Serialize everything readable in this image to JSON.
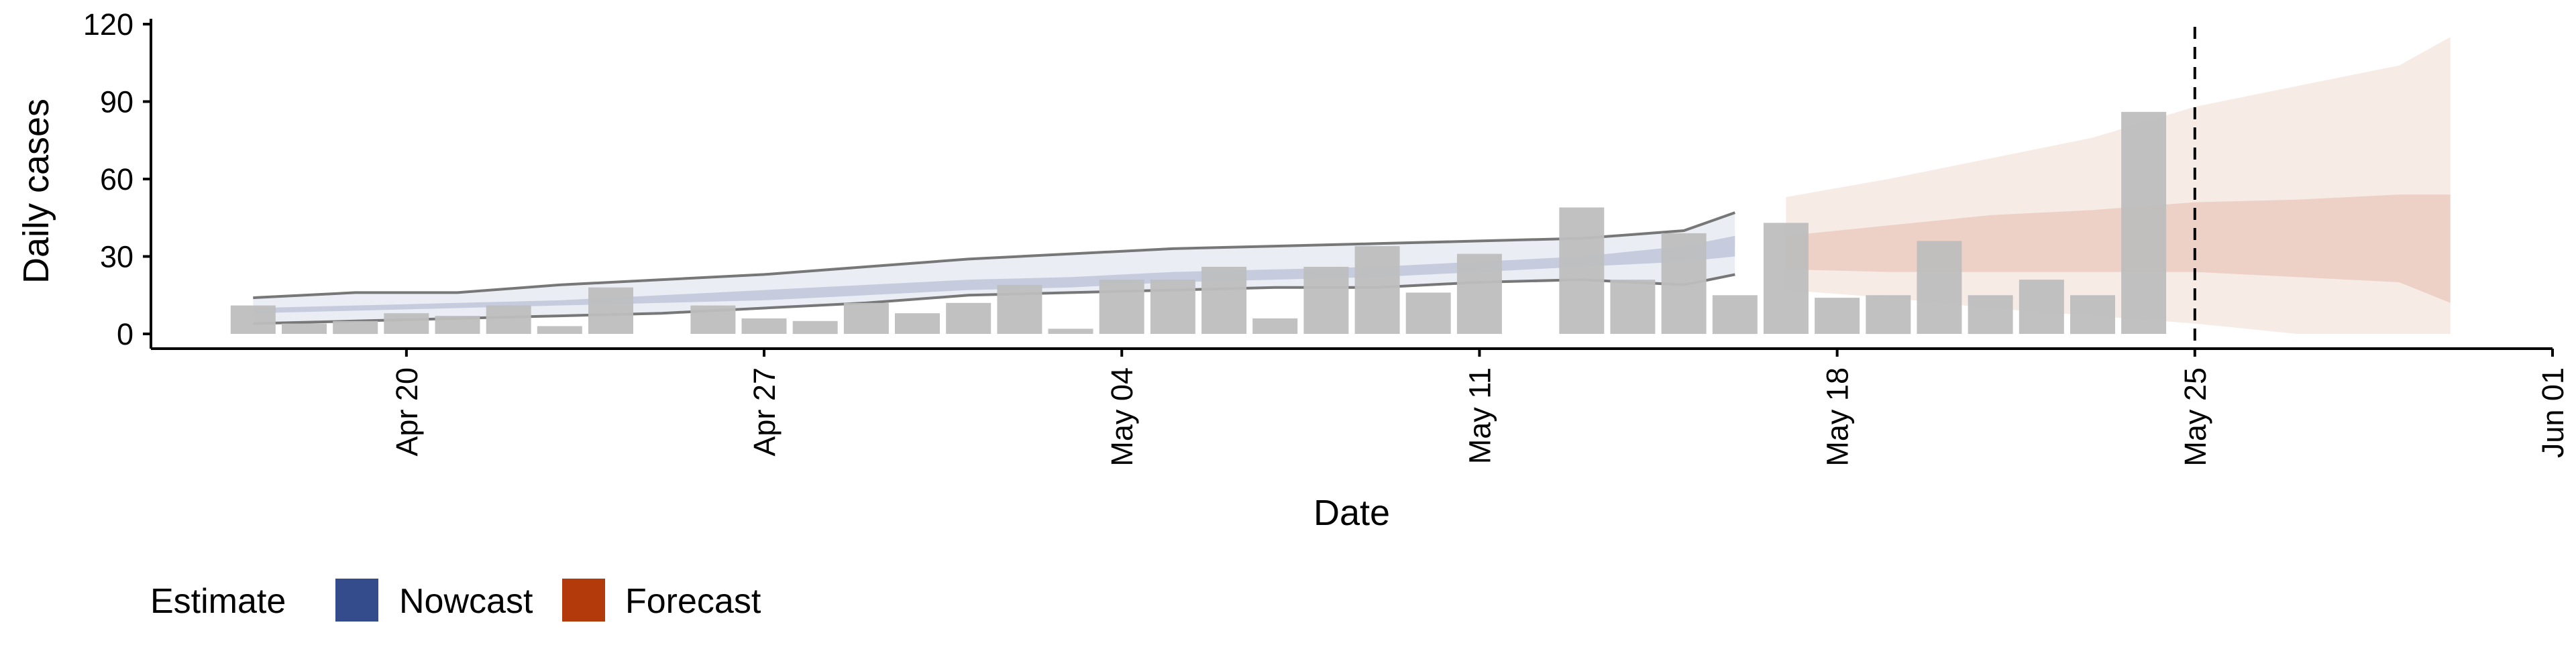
{
  "chart_data": {
    "type": "bar",
    "xlabel": "Date",
    "ylabel": "Daily cases",
    "ylim": [
      0,
      120
    ],
    "y_ticks": [
      "0",
      "30",
      "60",
      "90",
      "120"
    ],
    "x_range": [
      "2020-04-15",
      "2020-06-01"
    ],
    "x_ticks": [
      {
        "date": "2020-04-20",
        "label": "Apr 20"
      },
      {
        "date": "2020-04-27",
        "label": "Apr 27"
      },
      {
        "date": "2020-05-04",
        "label": "May 04"
      },
      {
        "date": "2020-05-11",
        "label": "May 11"
      },
      {
        "date": "2020-05-18",
        "label": "May 18"
      },
      {
        "date": "2020-05-25",
        "label": "May 25"
      },
      {
        "date": "2020-06-01",
        "label": "Jun 01"
      }
    ],
    "x_tick_rotation": -90,
    "grid": false,
    "vline_date": "2020-05-25",
    "reported_cases": {
      "dates": [
        "2020-04-17",
        "2020-04-18",
        "2020-04-19",
        "2020-04-20",
        "2020-04-21",
        "2020-04-22",
        "2020-04-23",
        "2020-04-24",
        "2020-04-25",
        "2020-04-26",
        "2020-04-27",
        "2020-04-28",
        "2020-04-29",
        "2020-04-30",
        "2020-05-01",
        "2020-05-02",
        "2020-05-03",
        "2020-05-04",
        "2020-05-05",
        "2020-05-06",
        "2020-05-07",
        "2020-05-08",
        "2020-05-09",
        "2020-05-10",
        "2020-05-11",
        "2020-05-12",
        "2020-05-13",
        "2020-05-14",
        "2020-05-15",
        "2020-05-16",
        "2020-05-17",
        "2020-05-18",
        "2020-05-19",
        "2020-05-20",
        "2020-05-21",
        "2020-05-22",
        "2020-05-23",
        "2020-05-24",
        "2020-05-25"
      ],
      "values": [
        11,
        4,
        5,
        8,
        7,
        11,
        3,
        18,
        0,
        11,
        6,
        5,
        12,
        8,
        12,
        19,
        2,
        21,
        21,
        26,
        6,
        26,
        34,
        16,
        31,
        0,
        49,
        21,
        39,
        15,
        43,
        14,
        15,
        36,
        15,
        21,
        15,
        86,
        0
      ]
    },
    "nowcast": {
      "dates": [
        "2020-04-17",
        "2020-04-19",
        "2020-04-21",
        "2020-04-23",
        "2020-04-25",
        "2020-04-27",
        "2020-04-29",
        "2020-05-01",
        "2020-05-03",
        "2020-05-05",
        "2020-05-07",
        "2020-05-09",
        "2020-05-11",
        "2020-05-13",
        "2020-05-15",
        "2020-05-16"
      ],
      "median": [
        9,
        10,
        11,
        12,
        13,
        15,
        17,
        19,
        20,
        22,
        23,
        24,
        26,
        28,
        31,
        34
      ],
      "inner_lower": [
        8,
        9,
        10,
        11,
        12,
        13,
        15,
        17,
        18,
        20,
        21,
        22,
        24,
        26,
        28,
        30
      ],
      "inner_upper": [
        10,
        11,
        12,
        13,
        15,
        17,
        19,
        21,
        22,
        24,
        25,
        26,
        28,
        30,
        34,
        38
      ],
      "outer_lower": [
        4,
        5,
        6,
        7,
        8,
        10,
        12,
        15,
        16,
        17,
        18,
        18,
        20,
        21,
        19,
        23
      ],
      "outer_upper": [
        14,
        16,
        16,
        19,
        21,
        23,
        26,
        29,
        31,
        33,
        34,
        35,
        36,
        37,
        40,
        47
      ]
    },
    "forecast": {
      "dates": [
        "2020-05-17",
        "2020-05-19",
        "2020-05-21",
        "2020-05-23",
        "2020-05-25",
        "2020-05-27",
        "2020-05-29",
        "2020-05-30"
      ],
      "inner_lower": [
        25,
        24,
        24,
        24,
        24,
        22,
        20,
        12
      ],
      "inner_upper": [
        38,
        42,
        46,
        48,
        51,
        52,
        54,
        54
      ],
      "outer_lower": [
        17,
        14,
        10,
        7,
        4,
        0,
        0,
        0
      ],
      "outer_upper": [
        53,
        60,
        68,
        76,
        88,
        96,
        104,
        115
      ]
    },
    "legend": {
      "title": "Estimate",
      "position": "bottom",
      "items": [
        {
          "label": "Nowcast",
          "color": "#354c8c"
        },
        {
          "label": "Forecast",
          "color": "#b33a0b"
        }
      ]
    },
    "colors": {
      "bars": "#bebebe",
      "nowcast_band": "#354c8c",
      "forecast_band": "#b33a0b",
      "interval_lines": "#777777",
      "axis": "#000000",
      "vline": "#000000"
    }
  }
}
